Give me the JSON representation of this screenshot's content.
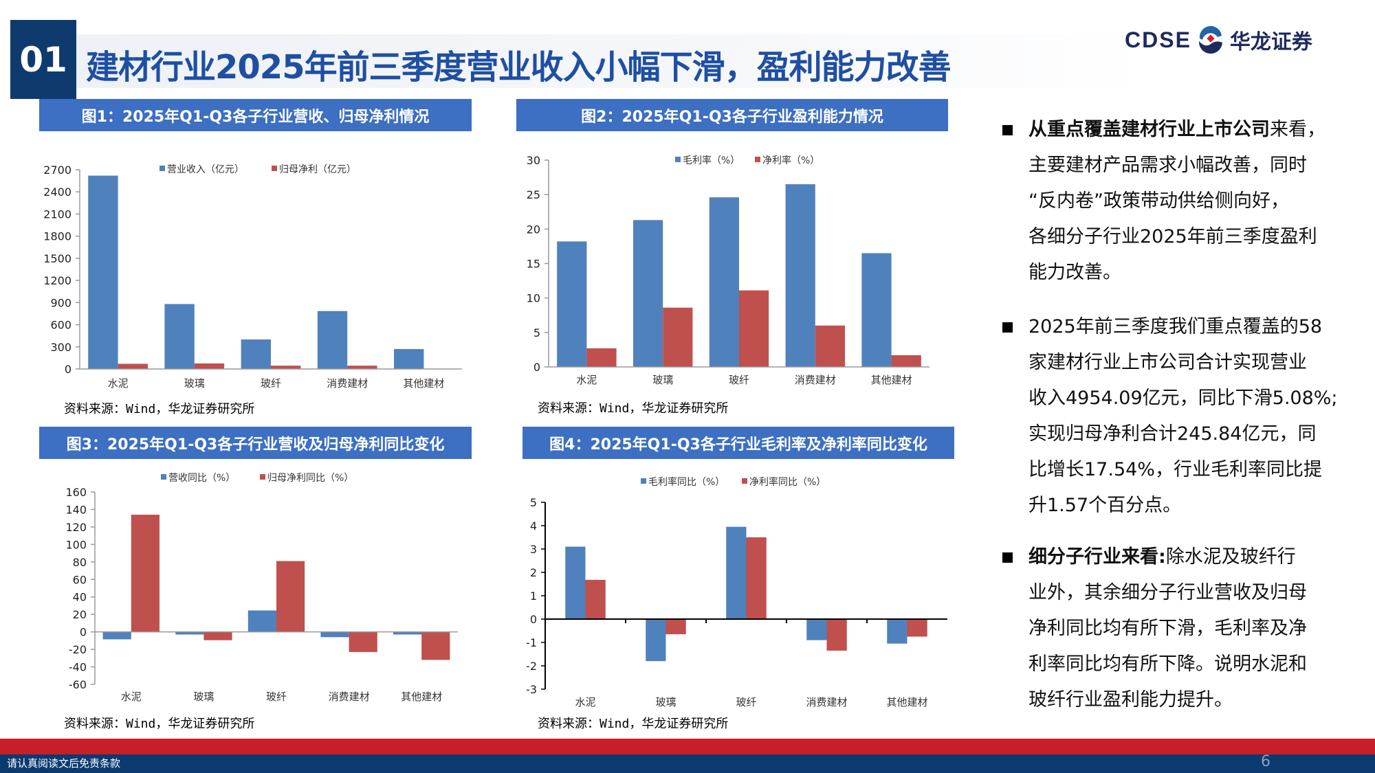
{
  "header": {
    "section_number": "01",
    "title": "建材行业2025年前三季度营业收入小幅下滑，盈利能力改善",
    "logo_text": "CDSE",
    "logo_cn": "华龙证券"
  },
  "colors": {
    "series_blue": "#4f81bd",
    "series_red": "#c0504d",
    "header_navy": "#0f3a6e",
    "figure_header": "#3d6fc2",
    "footer_red": "#c81e28",
    "footer_blue": "#0b3a70"
  },
  "figures": [
    {
      "heading": "图1：2025年Q1-Q3各子行业营收、归母净利情况",
      "source": "资料来源：Wind，华龙证券研究所"
    },
    {
      "heading": "图2：2025年Q1-Q3各子行业盈利能力情况",
      "source": "资料来源：Wind，华龙证券研究所"
    },
    {
      "heading": "图3：2025年Q1-Q3各子行业营收及归母净利同比变化",
      "source": "资料来源：Wind，华龙证券研究所"
    },
    {
      "heading": "图4：2025年Q1-Q3各子行业毛利率及净利率同比变化",
      "source": "资料来源：Wind，华龙证券研究所"
    }
  ],
  "chart_data": [
    {
      "type": "bar",
      "categories": [
        "水泥",
        "玻璃",
        "玻纤",
        "消费建材",
        "其他建材"
      ],
      "series": [
        {
          "name": "营业收入（亿元）",
          "values": [
            2620,
            880,
            400,
            785,
            270
          ]
        },
        {
          "name": "归母净利（亿元）",
          "values": [
            70,
            75,
            45,
            45,
            3
          ]
        }
      ],
      "ylim": [
        0,
        2700
      ],
      "yticks": [
        0,
        300,
        600,
        900,
        1200,
        1500,
        1800,
        2100,
        2400,
        2700
      ],
      "legend": "top",
      "grid": false
    },
    {
      "type": "bar",
      "categories": [
        "水泥",
        "玻璃",
        "玻纤",
        "消费建材",
        "其他建材"
      ],
      "series": [
        {
          "name": "毛利率（%）",
          "values": [
            18.2,
            21.3,
            24.6,
            26.5,
            16.5
          ]
        },
        {
          "name": "净利率（%）",
          "values": [
            2.7,
            8.6,
            11.1,
            6.0,
            1.7
          ]
        }
      ],
      "ylim": [
        0,
        30
      ],
      "yticks": [
        0,
        5,
        10,
        15,
        20,
        25,
        30
      ],
      "legend": "top",
      "grid": false
    },
    {
      "type": "bar",
      "categories": [
        "水泥",
        "玻璃",
        "玻纤",
        "消费建材",
        "其他建材"
      ],
      "series": [
        {
          "name": "营收同比（%）",
          "values": [
            -8.5,
            -3,
            24.5,
            -6,
            -3
          ]
        },
        {
          "name": "归母净利同比（%）",
          "values": [
            134,
            -9.5,
            81,
            -23,
            -32
          ]
        }
      ],
      "ylim": [
        -60,
        160
      ],
      "yticks": [
        -60,
        -40,
        -20,
        0,
        20,
        40,
        60,
        80,
        100,
        120,
        140,
        160
      ],
      "legend": "top",
      "grid": false
    },
    {
      "type": "bar",
      "categories": [
        "水泥",
        "玻璃",
        "玻纤",
        "消费建材",
        "其他建材"
      ],
      "series": [
        {
          "name": "毛利率同比（%）",
          "values": [
            3.1,
            -1.8,
            3.95,
            -0.9,
            -1.05
          ]
        },
        {
          "name": "净利率同比（%）",
          "values": [
            1.68,
            -0.65,
            3.5,
            -1.35,
            -0.75
          ]
        }
      ],
      "ylim": [
        -3,
        5
      ],
      "yticks": [
        -3,
        -2,
        -1,
        0,
        1,
        2,
        3,
        4,
        5
      ],
      "legend": "top",
      "grid": false
    }
  ],
  "text_panel": [
    {
      "bold": "从重点覆盖建材行业上市公司",
      "lines": [
        "来看，",
        "主要建材产品需求小幅改善，同时",
        "“反内卷”政策带动供给侧向好，",
        "各细分子行业2025年前三季度盈利",
        "能力改善。"
      ]
    },
    {
      "bold": "",
      "lines": [
        "2025年前三季度我们重点覆盖的58",
        "家建材行业上市公司合计实现营业",
        "收入4954.09亿元，同比下滑5.08%;",
        "实现归母净利合计245.84亿元，同",
        "比增长17.54%，行业毛利率同比提",
        "升1.57个百分点。"
      ]
    },
    {
      "bold": "细分子行业来看:",
      "lines": [
        "除水泥及玻纤行",
        "业外，其余细分子行业营收及归母",
        "净利同比均有所下滑，毛利率及净",
        "利率同比均有所下降。说明水泥和",
        "玻纤行业盈利能力提升。"
      ]
    }
  ],
  "footer": {
    "disclaimer": "请认真阅读文后免责条款",
    "page_number": "6"
  }
}
